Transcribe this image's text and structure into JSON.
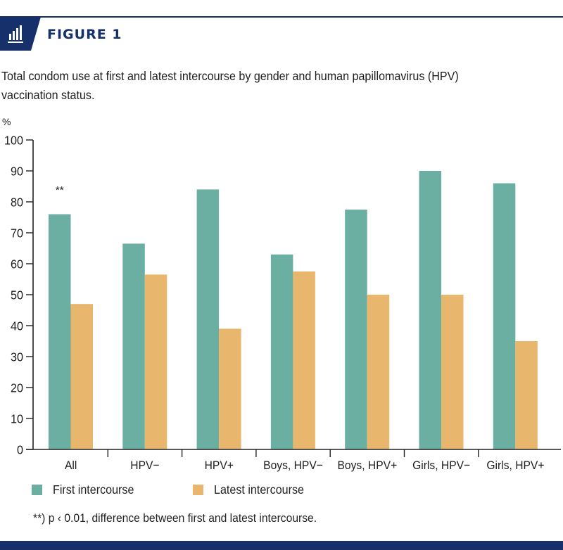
{
  "header": {
    "icon": "bar-chart-icon",
    "figure_label": "FIGURE 1",
    "caption": "Total condom use at first and latest intercourse by gender and human papillomavirus (HPV) vaccination status.",
    "accent_color": "#15306b"
  },
  "footnote": "**) p ‹ 0.01, difference between first and latest intercourse.",
  "chart_data": {
    "type": "bar",
    "title": "Total condom use at first and latest intercourse by gender and human papillomavirus (HPV) vaccination status.",
    "xlabel": "",
    "ylabel": "%",
    "ylim": [
      0,
      100
    ],
    "yticks": [
      0,
      10,
      20,
      30,
      40,
      50,
      60,
      70,
      80,
      90,
      100
    ],
    "grid": false,
    "legend_position": "bottom-left",
    "categories": [
      "All",
      "HPV−",
      "HPV+",
      "Boys, HPV−",
      "Boys, HPV+",
      "Girls, HPV−",
      "Girls, HPV+"
    ],
    "series": [
      {
        "name": "First intercourse",
        "color": "#6aafa2",
        "values": [
          76,
          66.5,
          84,
          63,
          77.5,
          90,
          86
        ]
      },
      {
        "name": "Latest intercourse",
        "color": "#e8b66c",
        "values": [
          47,
          56.5,
          39,
          57.5,
          50,
          50,
          35
        ]
      }
    ],
    "annotations": [
      {
        "category": "All",
        "text": "**",
        "y": 85
      }
    ]
  }
}
